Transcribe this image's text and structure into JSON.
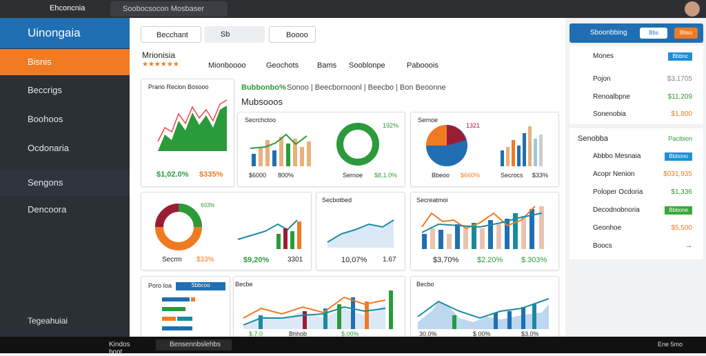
{
  "tabs": [
    "Ehconcnia",
    "Soobocsocon Mosbaser"
  ],
  "sidebar": {
    "title": "Uinongaia",
    "items": [
      "Bisnis",
      "Beccrigs",
      "Boohoos",
      "Ocdonaria",
      "Sengons",
      "Dencoora"
    ],
    "footer": "Tegeahuiai"
  },
  "toolbar": {
    "tab": "Becchant",
    "search": "Sb",
    "filter": "Boooo"
  },
  "header": {
    "title": "Mrionisia",
    "nav": [
      "Mionboooo",
      "Geochots",
      "Bams",
      "Sooblonpe",
      "Pabooois"
    ]
  },
  "breadcrumb": {
    "first": "Bubbonbo%",
    "rest": "Sonoo | Beecbornoonl | Beecbo | Bon Beoonne",
    "title": "Mubsooos"
  },
  "cards": [
    {
      "title": "Prano Recion Bosooo",
      "a": "$1,02.0%",
      "b": "$335%"
    },
    {
      "title": "Secrchctoo",
      "a": "$6000",
      "b": "800%",
      "c": "Sernoe",
      "d": "$8,1.0%",
      "e": "192%"
    },
    {
      "title": "Sernoe",
      "a": "Bbeoo",
      "b": "$660%",
      "c": "Secrocs",
      "d": "$33%",
      "e": "1321"
    },
    {
      "title": "",
      "a": "Secrm",
      "b": "$33%",
      "c": "$9,20%",
      "d": "3301",
      "e": "603%"
    },
    {
      "title": "Secbotbed",
      "a": "10,07%",
      "b": "1.67"
    },
    {
      "title": "Secreatmoi",
      "a": "$3,70%",
      "b": "$2.20%",
      "c": "$.303%"
    },
    {
      "title": "Poro Ioa",
      "a": "Sbbcoo"
    },
    {
      "title": "Becbe",
      "a": "$.7.0",
      "b": "Bhhob",
      "c": "$.00%"
    },
    {
      "title": "Becbo",
      "a": "30.0%",
      "b": "$ 00%",
      "c": "$3.0%"
    }
  ],
  "panel": {
    "title": "Sboonbbing",
    "btn1": "Bbs",
    "btn2": "Bbso",
    "list1": [
      [
        "Mones",
        "Bbbnc"
      ],
      [
        "Pojon",
        "$3,1705"
      ],
      [
        "Renoalbpne",
        "$11,209"
      ],
      [
        "Sonenobia",
        "$1,800"
      ]
    ],
    "section": "Senobba",
    "sectionLink": "Pacibion",
    "list2": [
      [
        "Abbbo Mesnaia",
        "Bbbono"
      ],
      [
        "Acopr Nenion",
        "$031,935"
      ],
      [
        "Poloper Ocdoria",
        "$1,336"
      ],
      [
        "Decodnobnoria",
        "Bbbone"
      ],
      [
        "Geonhoe",
        "$5,500"
      ],
      [
        "Boocs",
        ""
      ]
    ]
  },
  "taskbar": {
    "app1": "Kindos bont",
    "app2": "Bensennbslehbs",
    "time": "Ene 5mo"
  }
}
